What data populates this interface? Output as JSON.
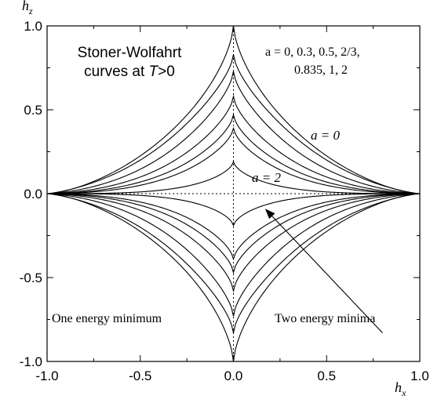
{
  "chart_data": {
    "type": "line",
    "xlabel": {
      "main": "h",
      "sub": "x"
    },
    "ylabel": {
      "main": "h",
      "sub": "z"
    },
    "xlim": [
      -1.0,
      1.0
    ],
    "ylim": [
      -1.0,
      1.0
    ],
    "x_ticks": [
      -1.0,
      -0.5,
      0.0,
      0.5,
      1.0
    ],
    "x_tick_labels": [
      "-1.0",
      "-0.5",
      "0.0",
      "0.5",
      "1.0"
    ],
    "y_ticks": [
      -1.0,
      -0.5,
      0.0,
      0.5,
      1.0
    ],
    "y_tick_labels": [
      "-1.0",
      "-0.5",
      "0.0",
      "0.5",
      "1.0"
    ],
    "grid": false,
    "zero_lines": "dotted",
    "annotations": {
      "title_line1": "Stoner-Wolfahrt",
      "title_line2_prefix": "curves at ",
      "title_line2_T": "T",
      "title_line2_suffix": ">0",
      "a_list_line1": "a = 0, 0.3, 0.5, 2/3,",
      "a_list_line2": "0.835, 1, 2",
      "a0_label": "a = 0",
      "a2_label": "a = 2",
      "one_min_label": "One energy minimum",
      "two_min_label": "Two energy minima"
    },
    "series": [
      {
        "a": 0,
        "hz_at_hx0": 1.0
      },
      {
        "a": 0.3,
        "hz_at_hx0": 0.83
      },
      {
        "a": 0.5,
        "hz_at_hx0": 0.73
      },
      {
        "a": 0.667,
        "hz_at_hx0": 0.58
      },
      {
        "a": 0.835,
        "hz_at_hx0": 0.47
      },
      {
        "a": 1,
        "hz_at_hx0": 0.39
      },
      {
        "a": 2,
        "hz_at_hx0": 0.19
      }
    ],
    "arrow": {
      "from": [
        0.8,
        -0.83
      ],
      "to": [
        0.17,
        -0.09
      ]
    }
  }
}
